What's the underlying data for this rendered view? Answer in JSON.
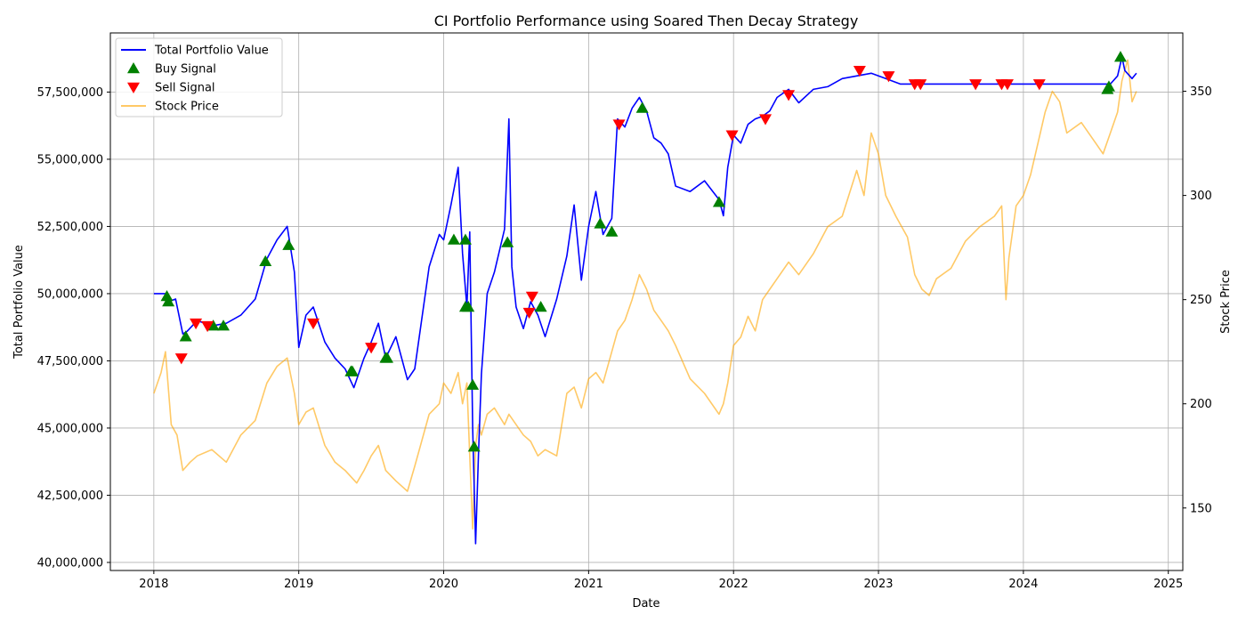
{
  "chart_data": {
    "type": "line",
    "title": "CI Portfolio Performance using Soared Then Decay Strategy",
    "xlabel": "Date",
    "ylabel": "Total Portfolio Value",
    "y2label": "Stock Price",
    "xlim": [
      2017.7,
      2025.1
    ],
    "ylim": [
      39700000,
      59700000
    ],
    "y2lim": [
      120,
      378
    ],
    "xticks": [
      2018,
      2019,
      2020,
      2021,
      2022,
      2023,
      2024,
      2025
    ],
    "xtick_labels": [
      "2018",
      "2019",
      "2020",
      "2021",
      "2022",
      "2023",
      "2024",
      "2025"
    ],
    "yticks": [
      40000000,
      42500000,
      45000000,
      47500000,
      50000000,
      52500000,
      55000000,
      57500000
    ],
    "ytick_labels": [
      "40,000,000",
      "42,500,000",
      "45,000,000",
      "47,500,000",
      "50,000,000",
      "52,500,000",
      "55,000,000",
      "57,500,000"
    ],
    "y2ticks": [
      150,
      200,
      250,
      300,
      350
    ],
    "y2tick_labels": [
      "150",
      "200",
      "250",
      "300",
      "350"
    ],
    "grid": true,
    "legend_position": "top-left",
    "series": [
      {
        "name": "Total Portfolio Value",
        "axis": "left",
        "color": "#0000ff",
        "x": [
          2018.0,
          2018.08,
          2018.1,
          2018.15,
          2018.2,
          2018.23,
          2018.3,
          2018.4,
          2018.5,
          2018.6,
          2018.7,
          2018.78,
          2018.85,
          2018.92,
          2018.97,
          2019.0,
          2019.05,
          2019.1,
          2019.18,
          2019.25,
          2019.32,
          2019.38,
          2019.45,
          2019.5,
          2019.55,
          2019.6,
          2019.67,
          2019.75,
          2019.8,
          2019.9,
          2019.97,
          2020.0,
          2020.05,
          2020.1,
          2020.13,
          2020.16,
          2020.18,
          2020.2,
          2020.22,
          2020.24,
          2020.26,
          2020.3,
          2020.35,
          2020.42,
          2020.45,
          2020.47,
          2020.5,
          2020.55,
          2020.6,
          2020.65,
          2020.7,
          2020.78,
          2020.85,
          2020.9,
          2020.95,
          2021.0,
          2021.05,
          2021.1,
          2021.16,
          2021.2,
          2021.25,
          2021.3,
          2021.35,
          2021.4,
          2021.45,
          2021.5,
          2021.55,
          2021.6,
          2021.7,
          2021.8,
          2021.9,
          2021.93,
          2021.96,
          2022.0,
          2022.05,
          2022.1,
          2022.15,
          2022.2,
          2022.25,
          2022.3,
          2022.38,
          2022.45,
          2022.55,
          2022.65,
          2022.75,
          2022.85,
          2022.95,
          2023.0,
          2023.05,
          2023.15,
          2023.25,
          2023.4,
          2023.6,
          2023.8,
          2024.0,
          2024.2,
          2024.4,
          2024.55,
          2024.6,
          2024.65,
          2024.68,
          2024.7,
          2024.75,
          2024.78
        ],
        "values": [
          50000000,
          50000000,
          49700000,
          49800000,
          48500000,
          48600000,
          49000000,
          48800000,
          48900000,
          49200000,
          49800000,
          51300000,
          52000000,
          52500000,
          50800000,
          48000000,
          49200000,
          49500000,
          48200000,
          47600000,
          47200000,
          46500000,
          47600000,
          48200000,
          48900000,
          47600000,
          48400000,
          46800000,
          47200000,
          51000000,
          52200000,
          52000000,
          53300000,
          54700000,
          51500000,
          49500000,
          52300000,
          45000000,
          40700000,
          44000000,
          47000000,
          50000000,
          50800000,
          52400000,
          56500000,
          51000000,
          49500000,
          48700000,
          49700000,
          49200000,
          48400000,
          49800000,
          51400000,
          53300000,
          50500000,
          52500000,
          53800000,
          52200000,
          52800000,
          56500000,
          56200000,
          56900000,
          57300000,
          56800000,
          55800000,
          55600000,
          55200000,
          54000000,
          53800000,
          54200000,
          53500000,
          52900000,
          54700000,
          55900000,
          55600000,
          56300000,
          56500000,
          56600000,
          56800000,
          57300000,
          57600000,
          57100000,
          57600000,
          57700000,
          58000000,
          58100000,
          58200000,
          58100000,
          58000000,
          57800000,
          57800000,
          57800000,
          57800000,
          57800000,
          57800000,
          57800000,
          57800000,
          57800000,
          57800000,
          58100000,
          58800000,
          58300000,
          58000000,
          58200000
        ]
      },
      {
        "name": "Stock Price",
        "axis": "right",
        "color": "#ffa500",
        "x": [
          2018.0,
          2018.05,
          2018.08,
          2018.12,
          2018.16,
          2018.2,
          2018.25,
          2018.3,
          2018.4,
          2018.5,
          2018.6,
          2018.7,
          2018.78,
          2018.85,
          2018.92,
          2018.97,
          2019.0,
          2019.05,
          2019.1,
          2019.18,
          2019.25,
          2019.32,
          2019.4,
          2019.45,
          2019.5,
          2019.55,
          2019.6,
          2019.67,
          2019.75,
          2019.8,
          2019.9,
          2019.97,
          2020.0,
          2020.05,
          2020.1,
          2020.13,
          2020.16,
          2020.18,
          2020.2,
          2020.22,
          2020.24,
          2020.26,
          2020.3,
          2020.35,
          2020.42,
          2020.45,
          2020.5,
          2020.55,
          2020.6,
          2020.65,
          2020.7,
          2020.78,
          2020.85,
          2020.9,
          2020.95,
          2021.0,
          2021.05,
          2021.1,
          2021.16,
          2021.2,
          2021.25,
          2021.3,
          2021.35,
          2021.4,
          2021.45,
          2021.5,
          2021.55,
          2021.6,
          2021.7,
          2021.8,
          2021.9,
          2021.93,
          2021.96,
          2022.0,
          2022.05,
          2022.1,
          2022.15,
          2022.2,
          2022.25,
          2022.3,
          2022.38,
          2022.45,
          2022.55,
          2022.65,
          2022.75,
          2022.85,
          2022.9,
          2022.95,
          2023.0,
          2023.05,
          2023.12,
          2023.2,
          2023.25,
          2023.3,
          2023.35,
          2023.4,
          2023.5,
          2023.6,
          2023.7,
          2023.8,
          2023.85,
          2023.88,
          2023.9,
          2023.95,
          2024.0,
          2024.05,
          2024.1,
          2024.15,
          2024.2,
          2024.25,
          2024.3,
          2024.4,
          2024.5,
          2024.55,
          2024.6,
          2024.65,
          2024.68,
          2024.72,
          2024.75,
          2024.78
        ],
        "values": [
          205,
          215,
          225,
          190,
          185,
          168,
          172,
          175,
          178,
          172,
          185,
          192,
          210,
          218,
          222,
          205,
          190,
          196,
          198,
          180,
          172,
          168,
          162,
          168,
          175,
          180,
          168,
          163,
          158,
          170,
          195,
          200,
          210,
          205,
          215,
          200,
          210,
          175,
          140,
          180,
          190,
          185,
          195,
          198,
          190,
          195,
          190,
          185,
          182,
          175,
          178,
          175,
          205,
          208,
          198,
          212,
          215,
          210,
          225,
          235,
          240,
          250,
          262,
          255,
          245,
          240,
          235,
          228,
          212,
          205,
          195,
          200,
          210,
          228,
          232,
          242,
          235,
          250,
          255,
          260,
          268,
          262,
          272,
          285,
          290,
          312,
          300,
          330,
          320,
          300,
          290,
          280,
          262,
          255,
          252,
          260,
          265,
          278,
          285,
          290,
          295,
          250,
          270,
          295,
          300,
          310,
          325,
          340,
          350,
          345,
          330,
          335,
          325,
          320,
          330,
          340,
          355,
          365,
          345,
          350
        ]
      }
    ],
    "markers": [
      {
        "name": "Buy Signal",
        "symbol": "triangle-up",
        "color": "#008000",
        "x": [
          2018.09,
          2018.1,
          2018.22,
          2018.41,
          2018.48,
          2018.77,
          2018.93,
          2019.36,
          2019.37,
          2019.6,
          2019.61,
          2020.07,
          2020.15,
          2020.15,
          2020.17,
          2020.2,
          2020.21,
          2020.44,
          2020.67,
          2021.08,
          2021.16,
          2021.37,
          2021.9,
          2024.58,
          2024.59,
          2024.67
        ],
        "values": [
          49900000,
          49700000,
          48400000,
          48800000,
          48800000,
          51200000,
          51800000,
          47100000,
          47100000,
          47600000,
          47600000,
          52000000,
          52000000,
          49500000,
          49500000,
          46600000,
          44300000,
          51900000,
          49500000,
          52600000,
          52300000,
          56900000,
          53400000,
          57600000,
          57700000,
          58800000
        ]
      },
      {
        "name": "Sell Signal",
        "symbol": "triangle-down",
        "color": "#ff0000",
        "x": [
          2018.19,
          2018.29,
          2018.37,
          2019.1,
          2019.5,
          2020.59,
          2020.61,
          2021.21,
          2021.99,
          2022.22,
          2022.38,
          2022.87,
          2023.07,
          2023.25,
          2023.29,
          2023.67,
          2023.85,
          2023.89,
          2024.11
        ],
        "values": [
          47600000,
          48900000,
          48800000,
          48900000,
          48000000,
          49300000,
          49900000,
          56300000,
          55900000,
          56500000,
          57400000,
          58300000,
          58100000,
          57800000,
          57800000,
          57800000,
          57800000,
          57800000,
          57800000
        ]
      }
    ],
    "legend": [
      "Total Portfolio Value",
      "Buy Signal",
      "Sell Signal",
      "Stock Price"
    ]
  }
}
